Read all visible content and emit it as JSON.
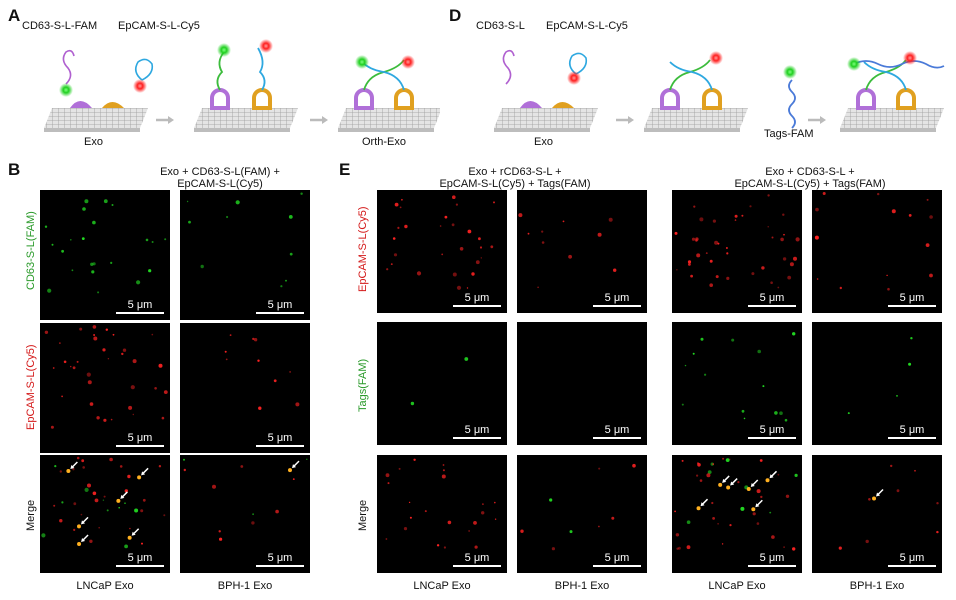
{
  "colors": {
    "fam": "#2a9a2a",
    "cy5": "#d41a1a",
    "arrow": "#ffffff"
  },
  "panelA": {
    "letter": "A",
    "probe1": "CD63-S-L-FAM",
    "probe2": "EpCAM-S-L-Cy5",
    "exo": "Exo",
    "orth": "Orth-Exo"
  },
  "panelD": {
    "letter": "D",
    "probe1": "CD63-S-L",
    "probe2": "EpCAM-S-L-Cy5",
    "exo": "Exo",
    "tags": "Tags-FAM"
  },
  "panelB": {
    "letter": "B",
    "header": "Exo + CD63-S-L(FAM) +\nEpCAM-S-L(Cy5)",
    "rows": [
      "CD63-S-L(FAM)",
      "EpCAM-S-L(Cy5)",
      "Merge"
    ],
    "cols": [
      "LNCaP Exo",
      "BPH-1 Exo"
    ]
  },
  "panelE": {
    "letter": "E",
    "header1": "Exo + rCD63-S-L +\nEpCAM-S-L(Cy5) + Tags(FAM)",
    "header2": "Exo + CD63-S-L +\nEpCAM-S-L(Cy5) + Tags(FAM)",
    "rows": [
      "EpCAM-S-L(Cy5)",
      "Tags(FAM)",
      "Merge"
    ],
    "cols": [
      "LNCaP Exo",
      "BPH-1 Exo",
      "LNCaP Exo",
      "BPH-1 Exo"
    ]
  },
  "scalebar": "5 μm"
}
